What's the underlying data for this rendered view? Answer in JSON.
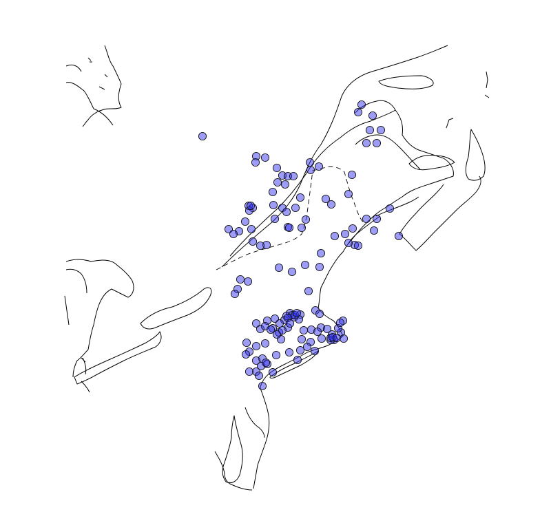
{
  "map": {
    "style": {
      "point_color": "#3333ee",
      "outline_color": "#000000",
      "background": "#ffffff"
    },
    "layers": [
      "coastlines",
      "state-border",
      "observation-points"
    ]
  }
}
